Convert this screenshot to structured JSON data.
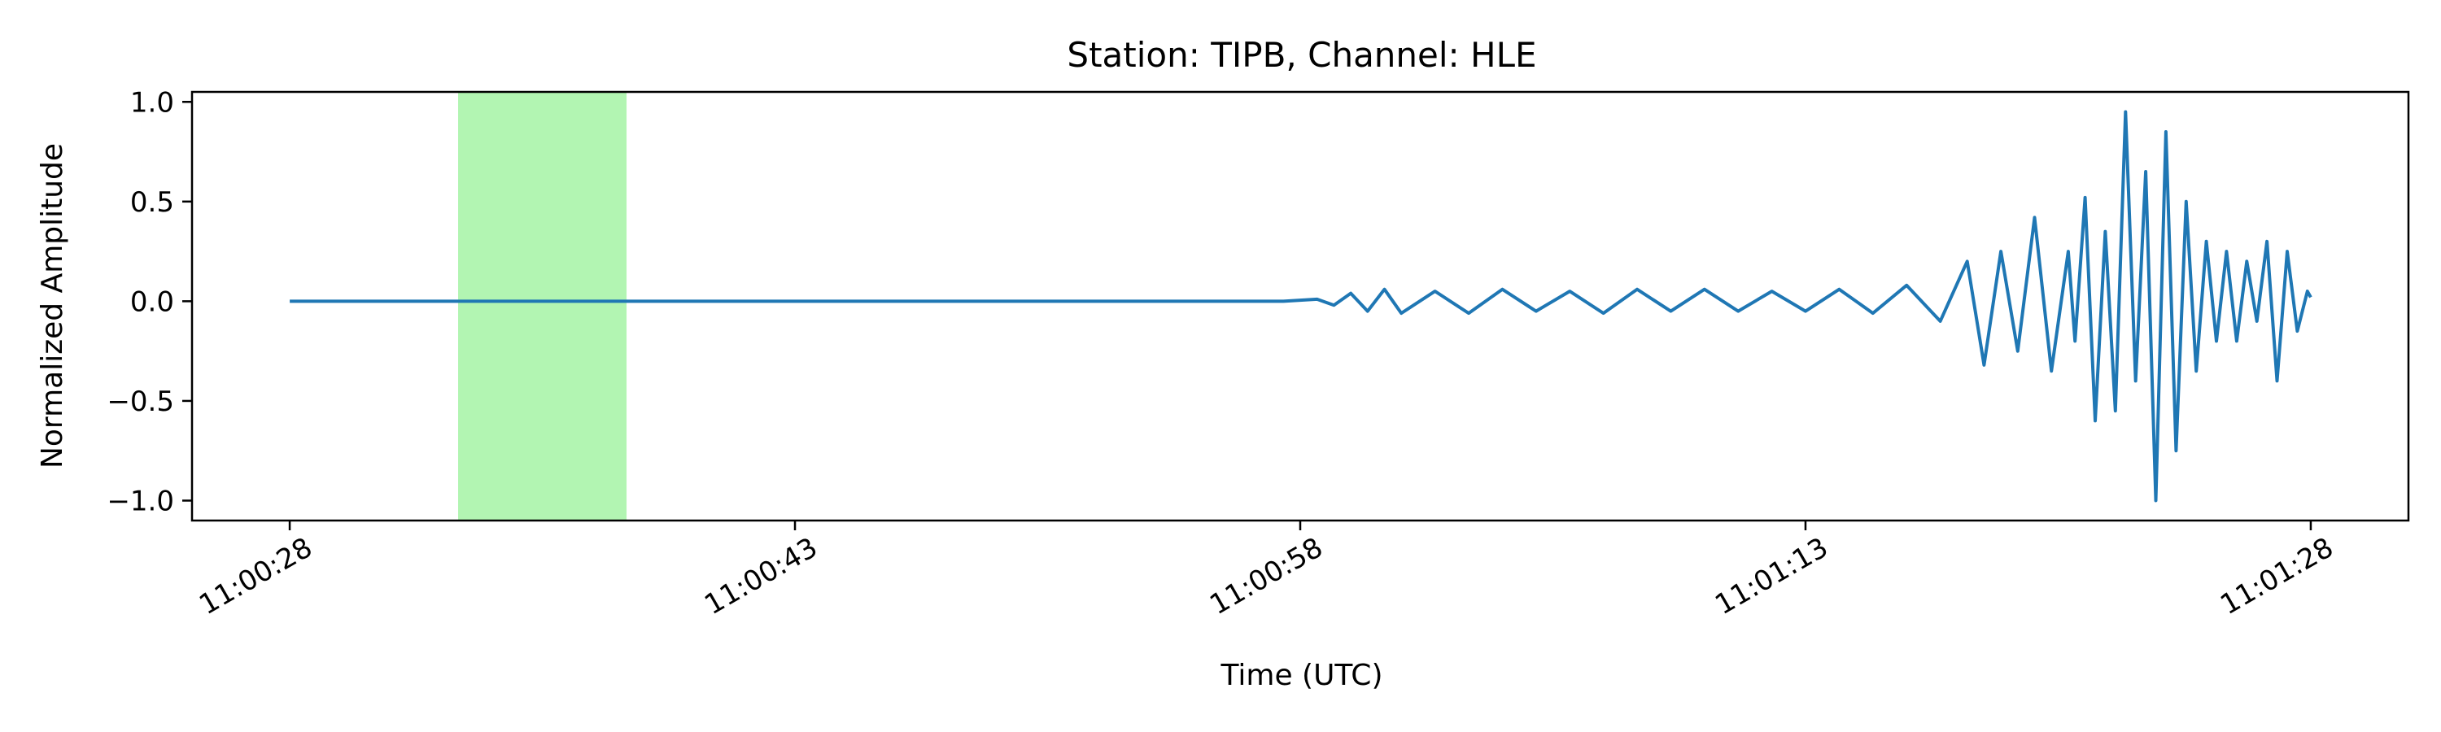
{
  "chart_data": {
    "type": "line",
    "title": "Station: TIPB, Channel: HLE",
    "xlabel": "Time (UTC)",
    "ylabel": "Normalized Amplitude",
    "x_range_seconds": [
      0,
      60
    ],
    "xlim_seconds": [
      -2.9,
      62.9
    ],
    "ylim": [
      -1.1,
      1.05
    ],
    "x_ticks": [
      {
        "t": 0,
        "label": "11:00:28"
      },
      {
        "t": 15,
        "label": "11:00:43"
      },
      {
        "t": 30,
        "label": "11:00:58"
      },
      {
        "t": 45,
        "label": "11:01:13"
      },
      {
        "t": 60,
        "label": "11:01:28"
      }
    ],
    "y_ticks": [
      {
        "v": 1.0,
        "label": "1.0"
      },
      {
        "v": 0.5,
        "label": "0.5"
      },
      {
        "v": 0.0,
        "label": "0.0"
      },
      {
        "v": -0.5,
        "label": "−0.5"
      },
      {
        "v": -1.0,
        "label": "−1.0"
      }
    ],
    "highlight": {
      "t_start": 5.0,
      "t_end": 10.0,
      "color": "#b2f5b2"
    },
    "series": [
      {
        "color": "#1f77b4",
        "x": [
          0,
          29.5,
          30.5,
          31.0,
          31.5,
          32.0,
          32.5,
          33.0,
          34.0,
          35.0,
          36.0,
          37.0,
          38.0,
          39.0,
          40.0,
          41.0,
          42.0,
          43.0,
          44.0,
          45.0,
          46.0,
          47.0,
          48.0,
          49.0,
          49.8,
          50.3,
          50.8,
          51.3,
          51.8,
          52.3,
          52.8,
          53.0,
          53.3,
          53.6,
          53.9,
          54.2,
          54.5,
          54.8,
          55.1,
          55.4,
          55.7,
          56.0,
          56.3,
          56.6,
          56.9,
          57.2,
          57.5,
          57.8,
          58.1,
          58.4,
          58.7,
          59.0,
          59.3,
          59.6,
          59.9,
          60.0
        ],
        "y": [
          0.0,
          0.0,
          0.01,
          -0.02,
          0.04,
          -0.05,
          0.06,
          -0.06,
          0.05,
          -0.06,
          0.06,
          -0.05,
          0.05,
          -0.06,
          0.06,
          -0.05,
          0.06,
          -0.05,
          0.05,
          -0.05,
          0.06,
          -0.06,
          0.08,
          -0.1,
          0.2,
          -0.32,
          0.25,
          -0.25,
          0.42,
          -0.35,
          0.25,
          -0.2,
          0.52,
          -0.6,
          0.35,
          -0.55,
          0.95,
          -0.4,
          0.65,
          -1.0,
          0.85,
          -0.75,
          0.5,
          -0.35,
          0.3,
          -0.2,
          0.25,
          -0.2,
          0.2,
          -0.1,
          0.3,
          -0.4,
          0.25,
          -0.15,
          0.05,
          0.02
        ]
      }
    ]
  }
}
